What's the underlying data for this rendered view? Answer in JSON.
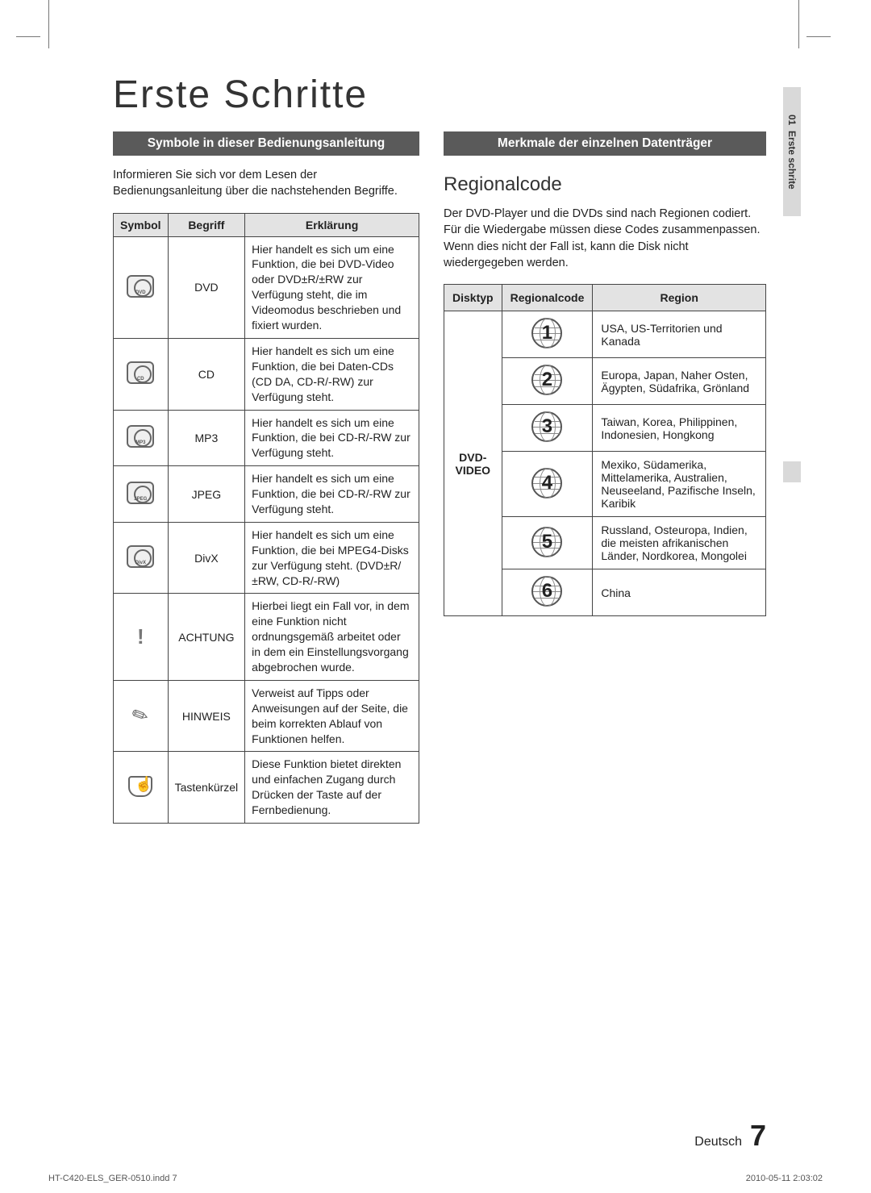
{
  "page_title": "Erste Schritte",
  "side_tab": {
    "chapter_num": "01",
    "chapter_title": "Erste schrite"
  },
  "left": {
    "section_bar": "Symbole in dieser Bedienungsanleitung",
    "intro": "Informieren Sie sich vor dem Lesen der Bedienungsanleitung über die nachstehenden Begriffe.",
    "table": {
      "headers": {
        "symbol": "Symbol",
        "term": "Begriff",
        "explanation": "Erklärung"
      },
      "rows": [
        {
          "icon_type": "disc",
          "icon_sub": "DVD",
          "term": "DVD",
          "explanation": "Hier handelt es sich um eine Funktion, die bei DVD-Video oder DVD±R/±RW zur Verfügung steht, die im Videomodus beschrieben und fixiert wurden."
        },
        {
          "icon_type": "disc",
          "icon_sub": "CD",
          "term": "CD",
          "explanation": "Hier handelt es sich um eine Funktion, die bei Daten-CDs (CD DA, CD-R/-RW) zur Verfügung steht."
        },
        {
          "icon_type": "disc",
          "icon_sub": "MP3",
          "term": "MP3",
          "explanation": "Hier handelt es sich um eine Funktion, die bei CD-R/-RW zur Verfügung steht."
        },
        {
          "icon_type": "disc",
          "icon_sub": "JPEG",
          "term": "JPEG",
          "explanation": "Hier handelt es sich um eine Funktion, die bei CD-R/-RW zur Verfügung steht."
        },
        {
          "icon_type": "disc",
          "icon_sub": "DivX",
          "term": "DivX",
          "explanation": "Hier handelt es sich um eine Funktion, die bei MPEG4-Disks zur Verfügung steht. (DVD±R/±RW, CD-R/-RW)"
        },
        {
          "icon_type": "caution",
          "icon_sub": "",
          "term": "ACHTUNG",
          "explanation": "Hierbei liegt ein Fall vor, in dem eine Funktion nicht ordnungsgemäß arbeitet oder in dem ein Einstellungsvorgang abgebrochen wurde."
        },
        {
          "icon_type": "note",
          "icon_sub": "",
          "term": "HINWEIS",
          "explanation": "Verweist auf Tipps oder Anweisungen auf der Seite, die beim korrekten Ablauf von Funktionen helfen."
        },
        {
          "icon_type": "shortcut",
          "icon_sub": "",
          "term": "Tastenkürzel",
          "explanation": "Diese Funktion bietet direkten und einfachen Zugang durch Drücken der Taste auf der Fernbedienung."
        }
      ]
    }
  },
  "right": {
    "section_bar": "Merkmale der einzelnen Datenträger",
    "heading": "Regionalcode",
    "intro": "Der DVD-Player und die DVDs sind nach Regionen codiert. Für die Wiedergabe müssen diese Codes zusammenpassen. Wenn dies nicht der Fall ist, kann die Disk nicht wiedergegeben werden.",
    "table": {
      "headers": {
        "disktype": "Disktyp",
        "regioncode": "Regionalcode",
        "region": "Region"
      },
      "disktype_label": "DVD-VIDEO",
      "rows": [
        {
          "num": "1",
          "region": "USA, US-Territorien und Kanada"
        },
        {
          "num": "2",
          "region": "Europa, Japan, Naher Osten, Ägypten, Südafrika, Grönland"
        },
        {
          "num": "3",
          "region": "Taiwan, Korea, Philippinen, Indonesien, Hongkong"
        },
        {
          "num": "4",
          "region": "Mexiko, Südamerika, Mittelamerika, Australien, Neuseeland, Pazifische Inseln, Karibik"
        },
        {
          "num": "5",
          "region": "Russland, Osteuropa, Indien, die meisten afrikanischen Länder, Nordkorea, Mongolei"
        },
        {
          "num": "6",
          "region": "China"
        }
      ]
    }
  },
  "footer": {
    "language": "Deutsch",
    "page_number": "7"
  },
  "print_footer": {
    "file": "HT-C420-ELS_GER-0510.indd   7",
    "timestamp": "2010-05-11   2:03:02"
  },
  "colors": {
    "section_bar_bg": "#5a5a5a",
    "section_bar_text": "#ffffff",
    "table_header_bg": "#e3e3e3",
    "border": "#444444",
    "side_tab_bg": "#d9d9d9"
  }
}
